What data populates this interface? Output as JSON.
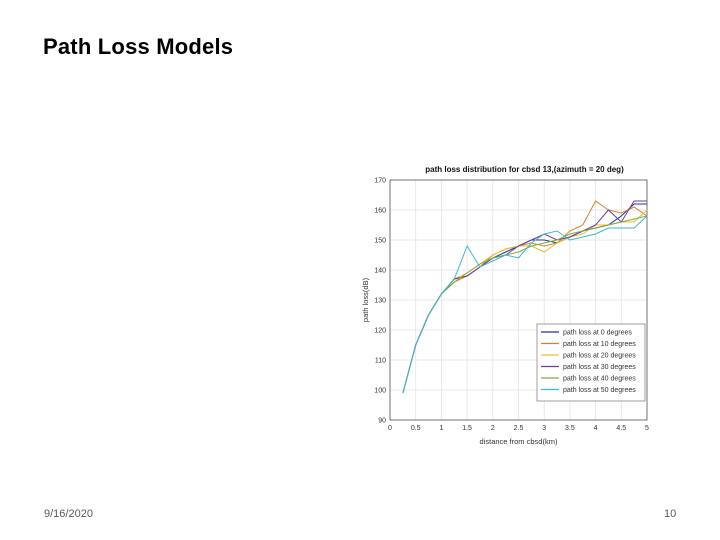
{
  "slide": {
    "title": "Path Loss Models",
    "date": "9/16/2020",
    "page_number": "10"
  },
  "chart_data": {
    "type": "line",
    "title": "path loss distribution for cbsd 13,(azimuth = 20 deg)",
    "xlabel": "distance from cbsd(km)",
    "ylabel": "path loss(dB)",
    "xlim": [
      0,
      5
    ],
    "ylim": [
      90,
      170
    ],
    "xticks": [
      0,
      0.5,
      1,
      1.5,
      2,
      2.5,
      3,
      3.5,
      4,
      4.5,
      5
    ],
    "yticks": [
      90,
      100,
      110,
      120,
      130,
      140,
      150,
      160,
      170
    ],
    "grid": true,
    "legend_position": "bottom-right",
    "x": [
      0.25,
      0.5,
      0.75,
      1.0,
      1.25,
      1.5,
      1.75,
      2.0,
      2.25,
      2.5,
      2.75,
      3.0,
      3.25,
      3.5,
      3.75,
      4.0,
      4.25,
      4.5,
      4.75,
      5.0
    ],
    "series": [
      {
        "name": "path loss at 0 degrees",
        "color": "#1f3a93",
        "values": [
          99,
          115,
          125,
          132,
          137,
          138,
          141,
          144,
          146,
          148,
          150,
          150,
          149,
          151,
          153,
          154,
          155,
          158,
          162,
          162
        ]
      },
      {
        "name": "path loss at 10 degrees",
        "color": "#d9822b",
        "values": [
          99,
          115,
          125,
          132,
          136,
          138,
          141,
          145,
          147,
          148,
          149,
          148,
          149,
          153,
          155,
          163,
          160,
          159,
          161,
          158
        ]
      },
      {
        "name": "path loss at 20 degrees",
        "color": "#e8c030",
        "values": [
          99,
          115,
          125,
          132,
          137,
          139,
          142,
          145,
          147,
          148,
          148,
          146,
          149,
          151,
          152,
          155,
          155,
          156,
          156,
          160
        ]
      },
      {
        "name": "path loss at 30 degrees",
        "color": "#6b3fa0",
        "values": [
          99,
          115,
          125,
          132,
          137,
          138,
          141,
          144,
          145,
          148,
          150,
          152,
          150,
          151,
          153,
          155,
          160,
          156,
          163,
          163
        ]
      },
      {
        "name": "path loss at 40 degrees",
        "color": "#7cae3c",
        "values": [
          99,
          115,
          125,
          132,
          136,
          139,
          142,
          144,
          145,
          146,
          148,
          149,
          150,
          152,
          153,
          154,
          155,
          156,
          157,
          158
        ]
      },
      {
        "name": "path loss at 50 degrees",
        "color": "#3fb5d6",
        "values": [
          99,
          115,
          125,
          132,
          137,
          148,
          141,
          143,
          145,
          144,
          149,
          152,
          153,
          150,
          151,
          152,
          154,
          154,
          154,
          158
        ]
      }
    ]
  }
}
